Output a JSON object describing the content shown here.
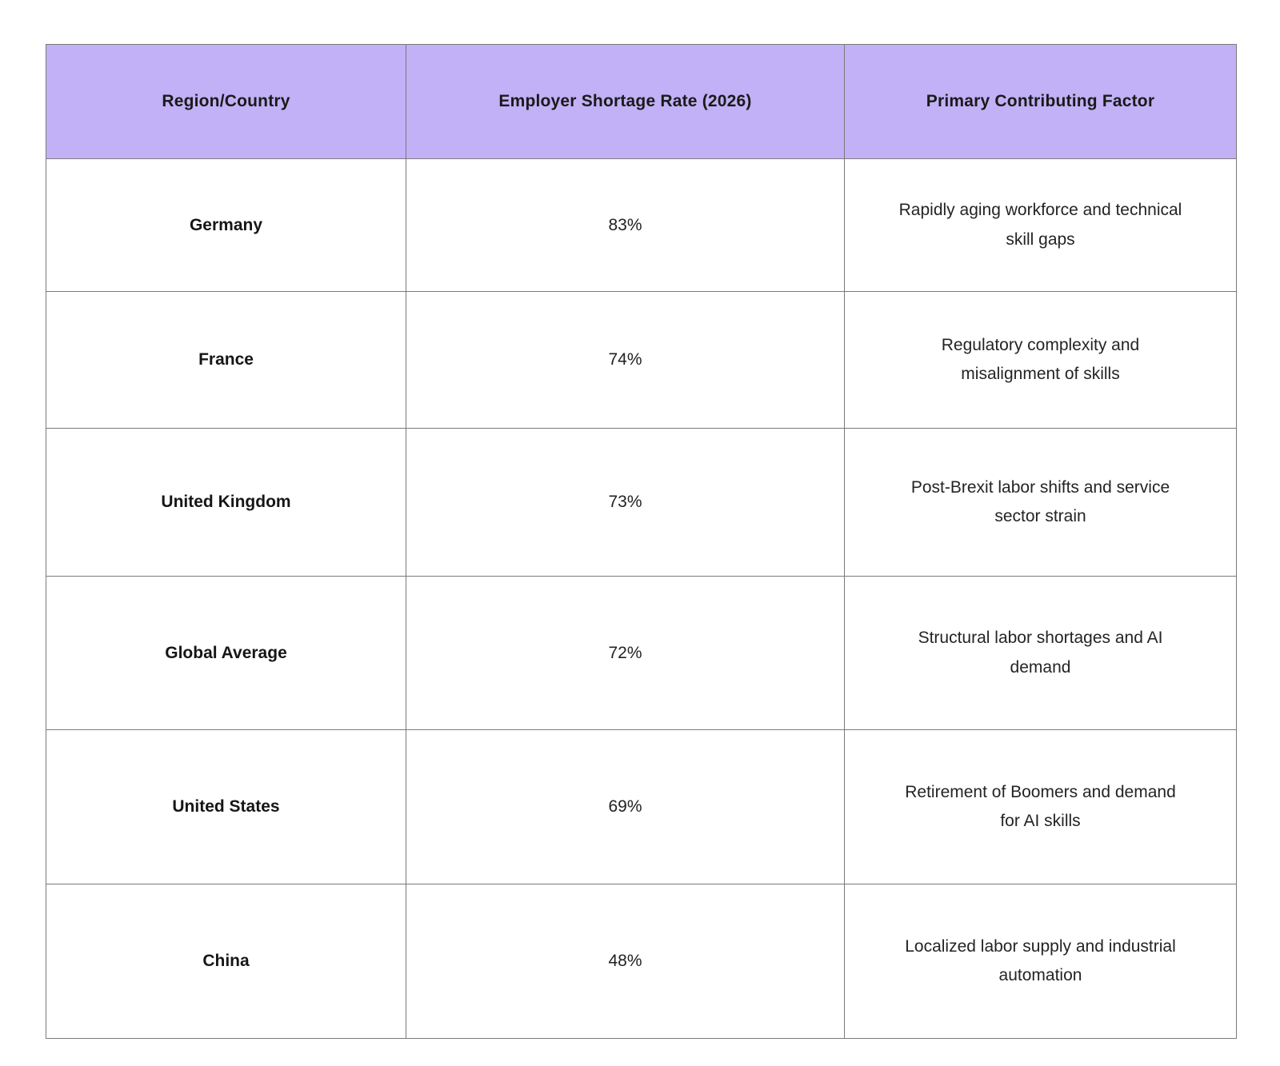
{
  "chart_data": {
    "type": "table",
    "title": "",
    "columns": [
      "Region/Country",
      "Employer Shortage Rate (2026)",
      "Primary Contributing Factor"
    ],
    "rows": [
      {
        "region": "Germany",
        "rate": "83%",
        "factor": "Rapidly aging workforce and technical\nskill gaps"
      },
      {
        "region": "France",
        "rate": "74%",
        "factor": "Regulatory complexity and\nmisalignment of skills"
      },
      {
        "region": "United Kingdom",
        "rate": "73%",
        "factor": "Post-Brexit labor shifts and service\nsector strain"
      },
      {
        "region": "Global Average",
        "rate": "72%",
        "factor": "Structural labor shortages and AI\ndemand"
      },
      {
        "region": "United States",
        "rate": "69%",
        "factor": "Retirement of Boomers and demand\nfor AI skills"
      },
      {
        "region": "China",
        "rate": "48%",
        "factor": "Localized labor supply and industrial\nautomation"
      }
    ],
    "layout_hints": {
      "header_row": true,
      "cell_alignment": "center",
      "grid": "full-borders"
    }
  },
  "colors": {
    "header_bg": "#c2b1f6",
    "border": "#7a7a7a",
    "background": "#ffffff",
    "text": "#1c1c1c"
  }
}
